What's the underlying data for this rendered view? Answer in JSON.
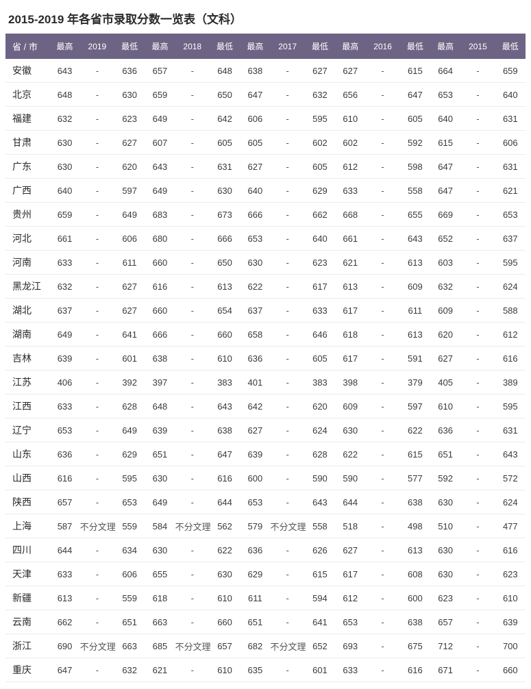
{
  "title": "2015-2019 年各省市录取分数一览表（文科）",
  "header": {
    "province": "省 / 市",
    "hi": "最高",
    "lo": "最低",
    "years": [
      "2019",
      "2018",
      "2017",
      "2016",
      "2015"
    ]
  },
  "colors": {
    "header_bg": "#6d6485",
    "header_text": "#ffffff",
    "row_border": "#ecebef",
    "text": "#3a3a3a"
  },
  "rows": [
    {
      "province": "安徽",
      "y2019": {
        "hi": "643",
        "mid": "-",
        "lo": "636"
      },
      "y2018": {
        "hi": "657",
        "mid": "-",
        "lo": "648"
      },
      "y2017": {
        "hi": "638",
        "mid": "-",
        "lo": "627"
      },
      "y2016": {
        "hi": "627",
        "mid": "-",
        "lo": "615"
      },
      "y2015": {
        "hi": "664",
        "mid": "-",
        "lo": "659"
      }
    },
    {
      "province": "北京",
      "y2019": {
        "hi": "648",
        "mid": "-",
        "lo": "630"
      },
      "y2018": {
        "hi": "659",
        "mid": "-",
        "lo": "650"
      },
      "y2017": {
        "hi": "647",
        "mid": "-",
        "lo": "632"
      },
      "y2016": {
        "hi": "656",
        "mid": "-",
        "lo": "647"
      },
      "y2015": {
        "hi": "653",
        "mid": "-",
        "lo": "640"
      }
    },
    {
      "province": "福建",
      "y2019": {
        "hi": "632",
        "mid": "-",
        "lo": "623"
      },
      "y2018": {
        "hi": "649",
        "mid": "-",
        "lo": "642"
      },
      "y2017": {
        "hi": "606",
        "mid": "-",
        "lo": "595"
      },
      "y2016": {
        "hi": "610",
        "mid": "-",
        "lo": "605"
      },
      "y2015": {
        "hi": "640",
        "mid": "-",
        "lo": "631"
      }
    },
    {
      "province": "甘肃",
      "y2019": {
        "hi": "630",
        "mid": "-",
        "lo": "627"
      },
      "y2018": {
        "hi": "607",
        "mid": "-",
        "lo": "605"
      },
      "y2017": {
        "hi": "605",
        "mid": "-",
        "lo": "602"
      },
      "y2016": {
        "hi": "602",
        "mid": "-",
        "lo": "592"
      },
      "y2015": {
        "hi": "615",
        "mid": "-",
        "lo": "606"
      }
    },
    {
      "province": "广东",
      "y2019": {
        "hi": "630",
        "mid": "-",
        "lo": "620"
      },
      "y2018": {
        "hi": "643",
        "mid": "-",
        "lo": "631"
      },
      "y2017": {
        "hi": "627",
        "mid": "-",
        "lo": "605"
      },
      "y2016": {
        "hi": "612",
        "mid": "-",
        "lo": "598"
      },
      "y2015": {
        "hi": "647",
        "mid": "-",
        "lo": "631"
      }
    },
    {
      "province": "广西",
      "y2019": {
        "hi": "640",
        "mid": "-",
        "lo": "597"
      },
      "y2018": {
        "hi": "649",
        "mid": "-",
        "lo": "630"
      },
      "y2017": {
        "hi": "640",
        "mid": "-",
        "lo": "629"
      },
      "y2016": {
        "hi": "633",
        "mid": "-",
        "lo": "558"
      },
      "y2015": {
        "hi": "647",
        "mid": "-",
        "lo": "621"
      }
    },
    {
      "province": "贵州",
      "y2019": {
        "hi": "659",
        "mid": "-",
        "lo": "649"
      },
      "y2018": {
        "hi": "683",
        "mid": "-",
        "lo": "673"
      },
      "y2017": {
        "hi": "666",
        "mid": "-",
        "lo": "662"
      },
      "y2016": {
        "hi": "668",
        "mid": "-",
        "lo": "655"
      },
      "y2015": {
        "hi": "669",
        "mid": "-",
        "lo": "653"
      }
    },
    {
      "province": "河北",
      "y2019": {
        "hi": "661",
        "mid": "-",
        "lo": "606"
      },
      "y2018": {
        "hi": "680",
        "mid": "-",
        "lo": "666"
      },
      "y2017": {
        "hi": "653",
        "mid": "-",
        "lo": "640"
      },
      "y2016": {
        "hi": "661",
        "mid": "-",
        "lo": "643"
      },
      "y2015": {
        "hi": "652",
        "mid": "-",
        "lo": "637"
      }
    },
    {
      "province": "河南",
      "y2019": {
        "hi": "633",
        "mid": "-",
        "lo": "611"
      },
      "y2018": {
        "hi": "660",
        "mid": "-",
        "lo": "650"
      },
      "y2017": {
        "hi": "630",
        "mid": "-",
        "lo": "623"
      },
      "y2016": {
        "hi": "621",
        "mid": "-",
        "lo": "613"
      },
      "y2015": {
        "hi": "603",
        "mid": "-",
        "lo": "595"
      }
    },
    {
      "province": "黑龙江",
      "y2019": {
        "hi": "632",
        "mid": "-",
        "lo": "627"
      },
      "y2018": {
        "hi": "616",
        "mid": "-",
        "lo": "613"
      },
      "y2017": {
        "hi": "622",
        "mid": "-",
        "lo": "617"
      },
      "y2016": {
        "hi": "613",
        "mid": "-",
        "lo": "609"
      },
      "y2015": {
        "hi": "632",
        "mid": "-",
        "lo": "624"
      }
    },
    {
      "province": "湖北",
      "y2019": {
        "hi": "637",
        "mid": "-",
        "lo": "627"
      },
      "y2018": {
        "hi": "660",
        "mid": "-",
        "lo": "654"
      },
      "y2017": {
        "hi": "637",
        "mid": "-",
        "lo": "633"
      },
      "y2016": {
        "hi": "617",
        "mid": "-",
        "lo": "611"
      },
      "y2015": {
        "hi": "609",
        "mid": "-",
        "lo": "588"
      }
    },
    {
      "province": "湖南",
      "y2019": {
        "hi": "649",
        "mid": "-",
        "lo": "641"
      },
      "y2018": {
        "hi": "666",
        "mid": "-",
        "lo": "660"
      },
      "y2017": {
        "hi": "658",
        "mid": "-",
        "lo": "646"
      },
      "y2016": {
        "hi": "618",
        "mid": "-",
        "lo": "613"
      },
      "y2015": {
        "hi": "620",
        "mid": "-",
        "lo": "612"
      }
    },
    {
      "province": "吉林",
      "y2019": {
        "hi": "639",
        "mid": "-",
        "lo": "601"
      },
      "y2018": {
        "hi": "638",
        "mid": "-",
        "lo": "610"
      },
      "y2017": {
        "hi": "636",
        "mid": "-",
        "lo": "605"
      },
      "y2016": {
        "hi": "617",
        "mid": "-",
        "lo": "591"
      },
      "y2015": {
        "hi": "627",
        "mid": "-",
        "lo": "616"
      }
    },
    {
      "province": "江苏",
      "y2019": {
        "hi": "406",
        "mid": "-",
        "lo": "392"
      },
      "y2018": {
        "hi": "397",
        "mid": "-",
        "lo": "383"
      },
      "y2017": {
        "hi": "401",
        "mid": "-",
        "lo": "383"
      },
      "y2016": {
        "hi": "398",
        "mid": "-",
        "lo": "379"
      },
      "y2015": {
        "hi": "405",
        "mid": "-",
        "lo": "389"
      }
    },
    {
      "province": "江西",
      "y2019": {
        "hi": "633",
        "mid": "-",
        "lo": "628"
      },
      "y2018": {
        "hi": "648",
        "mid": "-",
        "lo": "643"
      },
      "y2017": {
        "hi": "642",
        "mid": "-",
        "lo": "620"
      },
      "y2016": {
        "hi": "609",
        "mid": "-",
        "lo": "597"
      },
      "y2015": {
        "hi": "610",
        "mid": "-",
        "lo": "595"
      }
    },
    {
      "province": "辽宁",
      "y2019": {
        "hi": "653",
        "mid": "-",
        "lo": "649"
      },
      "y2018": {
        "hi": "639",
        "mid": "-",
        "lo": "638"
      },
      "y2017": {
        "hi": "627",
        "mid": "-",
        "lo": "624"
      },
      "y2016": {
        "hi": "630",
        "mid": "-",
        "lo": "622"
      },
      "y2015": {
        "hi": "636",
        "mid": "-",
        "lo": "631"
      }
    },
    {
      "province": "山东",
      "y2019": {
        "hi": "636",
        "mid": "-",
        "lo": "629"
      },
      "y2018": {
        "hi": "651",
        "mid": "-",
        "lo": "647"
      },
      "y2017": {
        "hi": "639",
        "mid": "-",
        "lo": "628"
      },
      "y2016": {
        "hi": "622",
        "mid": "-",
        "lo": "615"
      },
      "y2015": {
        "hi": "651",
        "mid": "-",
        "lo": "643"
      }
    },
    {
      "province": "山西",
      "y2019": {
        "hi": "616",
        "mid": "-",
        "lo": "595"
      },
      "y2018": {
        "hi": "630",
        "mid": "-",
        "lo": "616"
      },
      "y2017": {
        "hi": "600",
        "mid": "-",
        "lo": "590"
      },
      "y2016": {
        "hi": "590",
        "mid": "-",
        "lo": "577"
      },
      "y2015": {
        "hi": "592",
        "mid": "-",
        "lo": "572"
      }
    },
    {
      "province": "陕西",
      "y2019": {
        "hi": "657",
        "mid": "-",
        "lo": "653"
      },
      "y2018": {
        "hi": "649",
        "mid": "-",
        "lo": "644"
      },
      "y2017": {
        "hi": "653",
        "mid": "-",
        "lo": "643"
      },
      "y2016": {
        "hi": "644",
        "mid": "-",
        "lo": "638"
      },
      "y2015": {
        "hi": "630",
        "mid": "-",
        "lo": "624"
      }
    },
    {
      "province": "上海",
      "y2019": {
        "hi": "587",
        "mid": "不分文理",
        "lo": "559"
      },
      "y2018": {
        "hi": "584",
        "mid": "不分文理",
        "lo": "562"
      },
      "y2017": {
        "hi": "579",
        "mid": "不分文理",
        "lo": "558"
      },
      "y2016": {
        "hi": "518",
        "mid": "-",
        "lo": "498"
      },
      "y2015": {
        "hi": "510",
        "mid": "-",
        "lo": "477"
      }
    },
    {
      "province": "四川",
      "y2019": {
        "hi": "644",
        "mid": "-",
        "lo": "634"
      },
      "y2018": {
        "hi": "630",
        "mid": "-",
        "lo": "622"
      },
      "y2017": {
        "hi": "636",
        "mid": "-",
        "lo": "626"
      },
      "y2016": {
        "hi": "627",
        "mid": "-",
        "lo": "613"
      },
      "y2015": {
        "hi": "630",
        "mid": "-",
        "lo": "616"
      }
    },
    {
      "province": "天津",
      "y2019": {
        "hi": "633",
        "mid": "-",
        "lo": "606"
      },
      "y2018": {
        "hi": "655",
        "mid": "-",
        "lo": "630"
      },
      "y2017": {
        "hi": "629",
        "mid": "-",
        "lo": "615"
      },
      "y2016": {
        "hi": "617",
        "mid": "-",
        "lo": "608"
      },
      "y2015": {
        "hi": "630",
        "mid": "-",
        "lo": "623"
      }
    },
    {
      "province": "新疆",
      "y2019": {
        "hi": "613",
        "mid": "-",
        "lo": "559"
      },
      "y2018": {
        "hi": "618",
        "mid": "-",
        "lo": "610"
      },
      "y2017": {
        "hi": "611",
        "mid": "-",
        "lo": "594"
      },
      "y2016": {
        "hi": "612",
        "mid": "-",
        "lo": "600"
      },
      "y2015": {
        "hi": "623",
        "mid": "-",
        "lo": "610"
      }
    },
    {
      "province": "云南",
      "y2019": {
        "hi": "662",
        "mid": "-",
        "lo": "651"
      },
      "y2018": {
        "hi": "663",
        "mid": "-",
        "lo": "660"
      },
      "y2017": {
        "hi": "651",
        "mid": "-",
        "lo": "641"
      },
      "y2016": {
        "hi": "653",
        "mid": "-",
        "lo": "638"
      },
      "y2015": {
        "hi": "657",
        "mid": "-",
        "lo": "639"
      }
    },
    {
      "province": "浙江",
      "y2019": {
        "hi": "690",
        "mid": "不分文理",
        "lo": "663"
      },
      "y2018": {
        "hi": "685",
        "mid": "不分文理",
        "lo": "657"
      },
      "y2017": {
        "hi": "682",
        "mid": "不分文理",
        "lo": "652"
      },
      "y2016": {
        "hi": "693",
        "mid": "-",
        "lo": "675"
      },
      "y2015": {
        "hi": "712",
        "mid": "-",
        "lo": "700"
      }
    },
    {
      "province": "重庆",
      "y2019": {
        "hi": "647",
        "mid": "-",
        "lo": "632"
      },
      "y2018": {
        "hi": "621",
        "mid": "-",
        "lo": "610"
      },
      "y2017": {
        "hi": "635",
        "mid": "-",
        "lo": "601"
      },
      "y2016": {
        "hi": "633",
        "mid": "-",
        "lo": "616"
      },
      "y2015": {
        "hi": "671",
        "mid": "-",
        "lo": "660"
      }
    }
  ]
}
